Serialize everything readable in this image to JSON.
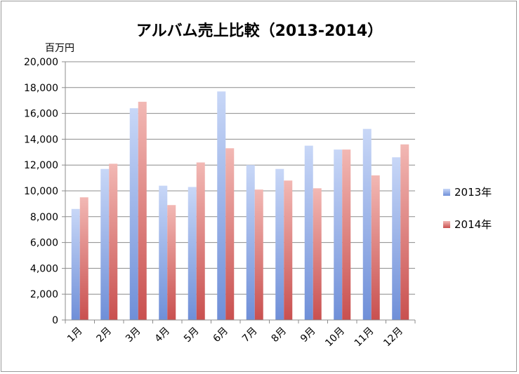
{
  "chart_data": {
    "type": "bar",
    "title": "アルバム売上比較（2013-2014）",
    "ylabel": "百万円",
    "ylim": [
      0,
      20000
    ],
    "ytick_step": 2000,
    "yticks": [
      "0",
      "2,000",
      "4,000",
      "6,000",
      "8,000",
      "10,000",
      "12,000",
      "14,000",
      "16,000",
      "18,000",
      "20,000"
    ],
    "categories": [
      "1月",
      "2月",
      "3月",
      "4月",
      "5月",
      "6月",
      "7月",
      "8月",
      "9月",
      "10月",
      "11月",
      "12月"
    ],
    "series": [
      {
        "name": "2013年",
        "color": "#6f8fd8",
        "values": [
          8600,
          11700,
          16400,
          10400,
          10300,
          17700,
          12000,
          11700,
          13500,
          13200,
          14800,
          12600
        ]
      },
      {
        "name": "2014年",
        "color": "#c9504f",
        "values": [
          9500,
          12100,
          16900,
          8900,
          12200,
          13300,
          10100,
          10800,
          10200,
          13200,
          11200,
          13600
        ]
      }
    ],
    "grid": true,
    "legend_position": "right"
  }
}
